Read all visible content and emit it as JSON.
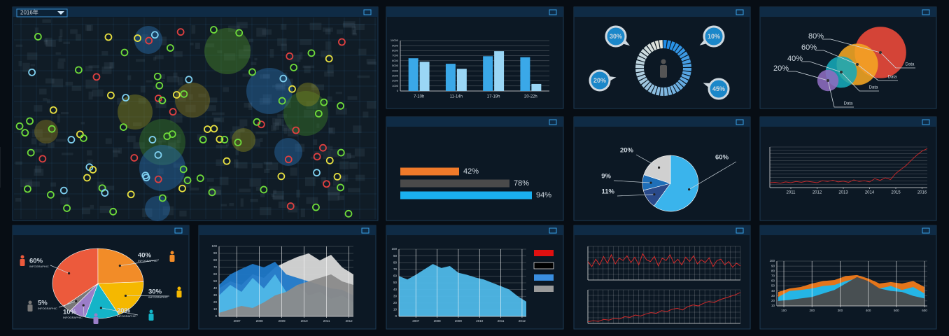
{
  "map": {
    "year_selector": "2016年"
  },
  "chart_data": [
    {
      "type": "bar",
      "categories": [
        "7-10h",
        "11-14h",
        "17-19h",
        "20-22h"
      ],
      "series": [
        {
          "color": "#3aa8e8",
          "values": [
            6500,
            5400,
            6900,
            6700
          ]
        },
        {
          "color": "#9ad6f5",
          "values": [
            5800,
            4400,
            7900,
            1400
          ]
        }
      ],
      "ylim": [
        0,
        10000
      ],
      "yticks": [
        0,
        1000,
        2000,
        3000,
        4000,
        5000,
        6000,
        7000,
        8000,
        9000,
        10000
      ]
    },
    {
      "type": "donut",
      "values": [
        30,
        10,
        20,
        45
      ],
      "value_labels": [
        "30%",
        "10%",
        "20%",
        "45%"
      ]
    },
    {
      "type": "bubble",
      "categories": [
        "Data",
        "Data",
        "Data",
        "Data"
      ],
      "values": [
        80,
        60,
        40,
        20
      ],
      "value_labels": [
        "80%",
        "60%",
        "40%",
        "20%"
      ],
      "colors": [
        "#f04a3a",
        "#f5a623",
        "#16a8b8",
        "#8e6cc0"
      ]
    },
    {
      "type": "hbar",
      "values": [
        42,
        78,
        94
      ],
      "value_labels": [
        "42%",
        "78%",
        "94%"
      ],
      "colors": [
        "#f07a2a",
        "#4a4a4a",
        "#1ab0f0"
      ],
      "xlim": [
        0,
        100
      ]
    },
    {
      "type": "pie",
      "values": [
        60,
        11,
        9,
        20
      ],
      "value_labels": [
        "60%",
        "11%",
        "9%",
        "20%"
      ],
      "colors": [
        "#3ab4ec",
        "#2a4a8a",
        "#1f6fb8",
        "#d0d0d0"
      ]
    },
    {
      "type": "line",
      "color": "#c0282a",
      "x": [
        2010.2,
        2010.4,
        2010.6,
        2010.8,
        2011.0,
        2011.2,
        2011.4,
        2011.6,
        2011.8,
        2012.0,
        2012.2,
        2012.4,
        2012.6,
        2012.8,
        2013.0,
        2013.2,
        2013.4,
        2013.6,
        2013.8,
        2014.0,
        2014.2,
        2014.4,
        2014.6,
        2014.8,
        2015.0,
        2015.2,
        2015.4,
        2015.6,
        2015.8,
        2016.0,
        2016.2
      ],
      "values": [
        12,
        13,
        11,
        14,
        12,
        15,
        13,
        16,
        14,
        12,
        17,
        15,
        18,
        14,
        16,
        13,
        19,
        15,
        17,
        14,
        22,
        18,
        24,
        20,
        35,
        45,
        55,
        68,
        80,
        90,
        96
      ],
      "xlim": [
        2010.2,
        2016.2
      ],
      "xticks": [
        2011,
        2012,
        2013,
        2014,
        2015,
        2016
      ],
      "ylim": [
        0,
        100
      ]
    },
    {
      "type": "pie",
      "values": [
        60,
        40,
        30,
        20,
        10,
        5
      ],
      "value_labels": [
        "60%",
        "40%",
        "30%",
        "20%",
        "10%",
        "5%"
      ],
      "categories": [
        "INFOGRAPHIC",
        "INFOGRAPHIC",
        "INFOGRAPHIC",
        "INFOGRAPHIC",
        "INFOGRAPHIC",
        "INFOGRAPHIC"
      ],
      "colors": [
        "#ec5a3c",
        "#f28c28",
        "#f5b800",
        "#14b4c8",
        "#9b7ec8",
        "#777777"
      ]
    },
    {
      "type": "area",
      "x": [
        2006.2,
        2006.7,
        2007.2,
        2007.7,
        2008.2,
        2008.7,
        2009.2,
        2009.7,
        2010.2,
        2010.7,
        2011.2,
        2011.7,
        2012.2
      ],
      "series": [
        {
          "color": "#d8d8d8",
          "values": [
            40,
            50,
            45,
            60,
            55,
            70,
            78,
            85,
            90,
            80,
            88,
            70,
            60
          ]
        },
        {
          "color": "#1f78c8",
          "values": [
            45,
            60,
            68,
            75,
            70,
            78,
            60,
            55,
            50,
            45,
            40,
            38,
            30
          ]
        },
        {
          "color": "#4fb8e8",
          "values": [
            30,
            45,
            35,
            55,
            40,
            60,
            35,
            45,
            30,
            35,
            25,
            30,
            20
          ]
        },
        {
          "color": "#8a8a8a",
          "values": [
            5,
            10,
            15,
            12,
            20,
            30,
            35,
            45,
            50,
            55,
            60,
            50,
            45
          ]
        }
      ],
      "xlim": [
        2006.2,
        2012.2
      ],
      "xticks": [
        2007,
        2008,
        2009,
        2010,
        2011,
        2012
      ],
      "ylim": [
        0,
        100
      ],
      "yticks": [
        0,
        10,
        20,
        30,
        40,
        50,
        60,
        70,
        80,
        90,
        100
      ]
    },
    {
      "type": "area",
      "x": [
        2006.2,
        2006.6,
        2007.0,
        2007.4,
        2007.8,
        2008.2,
        2008.6,
        2009.0,
        2009.4,
        2009.8,
        2010.2,
        2010.6,
        2011.0,
        2011.4,
        2011.8,
        2012.2
      ],
      "series": [
        {
          "color": "#4fb8e8",
          "values": [
            60,
            55,
            62,
            70,
            78,
            72,
            75,
            65,
            62,
            58,
            55,
            50,
            45,
            40,
            30,
            22
          ]
        }
      ],
      "xlim": [
        2006.2,
        2012.2
      ],
      "xticks": [
        2007,
        2008,
        2009,
        2010,
        2011,
        2012
      ],
      "ylim": [
        0,
        100
      ],
      "yticks": [
        0,
        10,
        20,
        30,
        40,
        50,
        60,
        70,
        80,
        90,
        100
      ]
    },
    {
      "type": "line",
      "color": "#d02a2a",
      "ylim": [
        0,
        100
      ],
      "values": [
        55,
        40,
        62,
        45,
        70,
        50,
        75,
        48,
        65,
        58,
        72,
        52,
        68,
        45,
        78,
        60,
        55,
        70,
        42,
        65,
        58,
        75,
        50,
        62,
        45,
        68,
        55,
        72,
        48,
        60,
        52,
        66,
        40,
        58,
        62,
        45,
        55,
        38,
        50,
        42
      ]
    },
    {
      "type": "line",
      "color": "#d02a2a",
      "ylim": [
        0,
        100
      ],
      "values": [
        5,
        8,
        6,
        12,
        10,
        15,
        13,
        20,
        18,
        25,
        22,
        28,
        32,
        30,
        38,
        35,
        42,
        45,
        40,
        50,
        55,
        52,
        60,
        65,
        62,
        70,
        75,
        80,
        85,
        92
      ]
    },
    {
      "type": "area",
      "x": [
        80,
        120,
        160,
        200,
        240,
        280,
        320,
        360,
        400,
        440,
        480,
        520,
        560,
        600
      ],
      "series": [
        {
          "color": "#f07a1a",
          "values": [
            38,
            45,
            48,
            55,
            60,
            62,
            70,
            72,
            65,
            55,
            58,
            55,
            60,
            48
          ]
        },
        {
          "color": "#1ab8f0",
          "values": [
            28,
            40,
            42,
            45,
            50,
            52,
            60,
            65,
            58,
            45,
            50,
            42,
            48,
            35
          ]
        },
        {
          "color": "#4a4a4a",
          "values": [
            20,
            22,
            25,
            28,
            35,
            42,
            55,
            68,
            60,
            45,
            40,
            38,
            30,
            25
          ]
        }
      ],
      "xlim": [
        75,
        610
      ],
      "xticks": [
        100,
        200,
        300,
        400,
        500,
        600
      ],
      "ylim": [
        10,
        100
      ],
      "yticks": [
        10,
        20,
        30,
        40,
        50,
        60,
        70,
        80,
        90,
        100
      ]
    }
  ]
}
